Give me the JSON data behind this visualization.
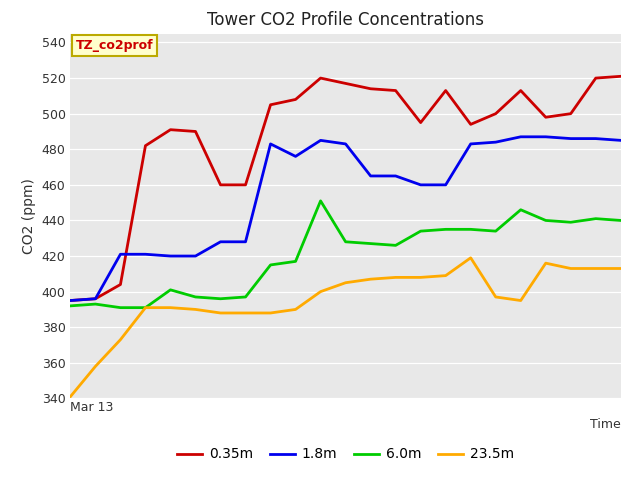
{
  "title": "Tower CO2 Profile Concentrations",
  "xlabel": "Time",
  "ylabel": "CO2 (ppm)",
  "ylim": [
    340,
    545
  ],
  "xlim": [
    0,
    22
  ],
  "x_label_text": "Mar 13",
  "fig_bg_color": "#ffffff",
  "plot_bg_color": "#e8e8e8",
  "grid_color": "#ffffff",
  "annotation_text": "TZ_co2prof",
  "annotation_bg": "#ffffcc",
  "annotation_border": "#bbaa00",
  "annotation_text_color": "#cc0000",
  "series": [
    {
      "label": "0.35m",
      "color": "#cc0000",
      "lw": 2.0,
      "x": [
        0,
        1,
        2,
        3,
        4,
        5,
        6,
        7,
        8,
        9,
        10,
        11,
        12,
        13,
        14,
        15,
        16,
        17,
        18,
        19,
        20,
        21,
        22
      ],
      "y": [
        395,
        396,
        404,
        482,
        491,
        490,
        460,
        460,
        505,
        508,
        520,
        517,
        514,
        513,
        495,
        513,
        494,
        500,
        513,
        498,
        500,
        520,
        521
      ]
    },
    {
      "label": "1.8m",
      "color": "#0000ee",
      "lw": 2.0,
      "x": [
        0,
        1,
        2,
        3,
        4,
        5,
        6,
        7,
        8,
        9,
        10,
        11,
        12,
        13,
        14,
        15,
        16,
        17,
        18,
        19,
        20,
        21,
        22
      ],
      "y": [
        395,
        396,
        421,
        421,
        420,
        420,
        428,
        428,
        483,
        476,
        485,
        483,
        465,
        465,
        460,
        460,
        483,
        484,
        487,
        487,
        486,
        486,
        485
      ]
    },
    {
      "label": "6.0m",
      "color": "#00cc00",
      "lw": 2.0,
      "x": [
        0,
        1,
        2,
        3,
        4,
        5,
        6,
        7,
        8,
        9,
        10,
        11,
        12,
        13,
        14,
        15,
        16,
        17,
        18,
        19,
        20,
        21,
        22
      ],
      "y": [
        392,
        393,
        391,
        391,
        401,
        397,
        396,
        397,
        415,
        417,
        451,
        428,
        427,
        426,
        434,
        435,
        435,
        434,
        446,
        440,
        439,
        441,
        440
      ]
    },
    {
      "label": "23.5m",
      "color": "#ffaa00",
      "lw": 2.0,
      "x": [
        0,
        1,
        2,
        3,
        4,
        5,
        6,
        7,
        8,
        9,
        10,
        11,
        12,
        13,
        14,
        15,
        16,
        17,
        18,
        19,
        20,
        21,
        22
      ],
      "y": [
        341,
        358,
        373,
        391,
        391,
        390,
        388,
        388,
        388,
        390,
        400,
        405,
        407,
        408,
        408,
        409,
        419,
        397,
        395,
        416,
        413,
        413,
        413
      ]
    }
  ],
  "yticks": [
    340,
    360,
    380,
    400,
    420,
    440,
    460,
    480,
    500,
    520,
    540
  ],
  "legend_entries": [
    "0.35m",
    "1.8m",
    "6.0m",
    "23.5m"
  ],
  "legend_colors": [
    "#cc0000",
    "#0000ee",
    "#00cc00",
    "#ffaa00"
  ]
}
